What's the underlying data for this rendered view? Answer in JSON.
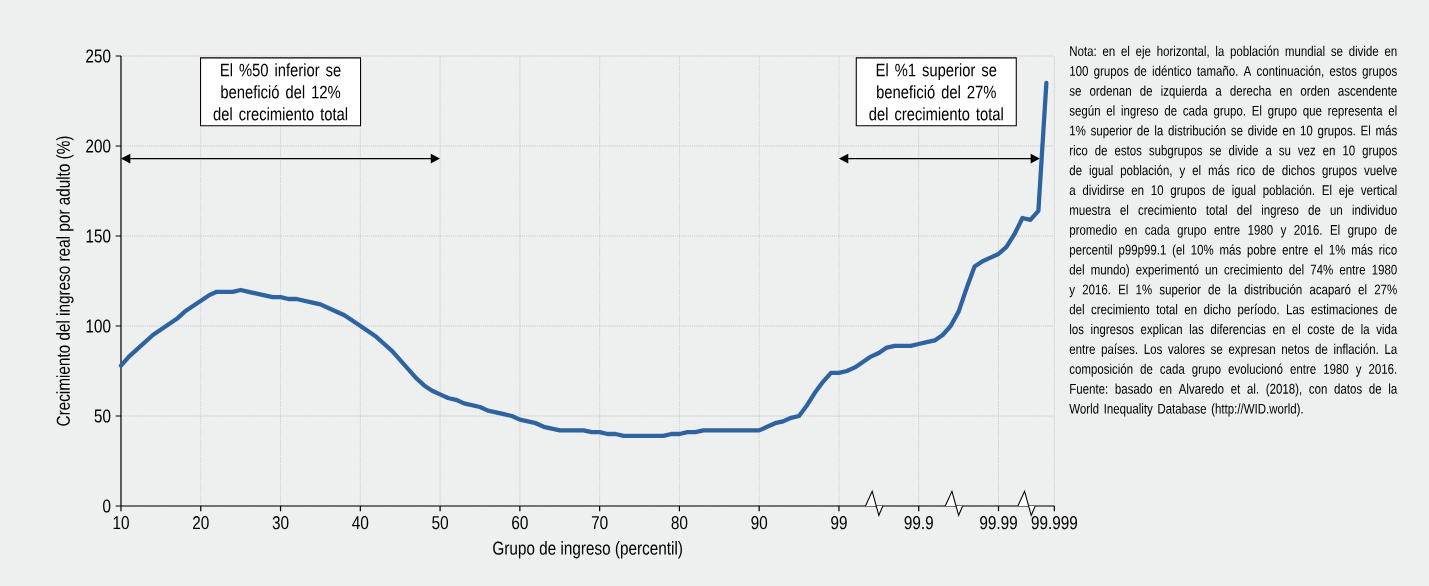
{
  "chart_data": {
    "type": "line",
    "xlabel": "Grupo de ingreso (percentil)",
    "ylabel": "Crecimiento del ingreso real por adulto (%)",
    "categories": [
      "10",
      null,
      null,
      null,
      null,
      null,
      null,
      null,
      null,
      null,
      "20",
      null,
      null,
      null,
      null,
      null,
      null,
      null,
      null,
      null,
      "30",
      null,
      null,
      null,
      null,
      null,
      null,
      null,
      null,
      null,
      "40",
      null,
      null,
      null,
      null,
      null,
      null,
      null,
      null,
      null,
      "50",
      null,
      null,
      null,
      null,
      null,
      null,
      null,
      null,
      null,
      "60",
      null,
      null,
      null,
      null,
      null,
      null,
      null,
      null,
      null,
      "70",
      null,
      null,
      null,
      null,
      null,
      null,
      null,
      null,
      null,
      "80",
      null,
      null,
      null,
      null,
      null,
      null,
      null,
      null,
      null,
      "90",
      null,
      null,
      null,
      null,
      null,
      null,
      null,
      null,
      null,
      "99",
      null,
      null,
      null,
      null,
      null,
      null,
      null,
      null,
      null,
      "99.9",
      null,
      null,
      null,
      null,
      null,
      null,
      null,
      null,
      null,
      "99.99",
      null,
      null,
      null,
      null,
      null,
      null,
      "99.999"
    ],
    "values": [
      78,
      83,
      87,
      91,
      95,
      98,
      101,
      104,
      108,
      111,
      114,
      117,
      119,
      119,
      119,
      120,
      119,
      118,
      117,
      116,
      116,
      115,
      115,
      114,
      113,
      112,
      110,
      108,
      106,
      103,
      100,
      97,
      94,
      90,
      86,
      81,
      76,
      71,
      67,
      64,
      62,
      60,
      59,
      57,
      56,
      55,
      53,
      52,
      51,
      50,
      48,
      47,
      46,
      44,
      43,
      42,
      42,
      42,
      42,
      41,
      41,
      40,
      40,
      39,
      39,
      39,
      39,
      39,
      39,
      40,
      40,
      41,
      41,
      42,
      42,
      42,
      42,
      42,
      42,
      42,
      42,
      44,
      46,
      47,
      49,
      50,
      56,
      63,
      69,
      74,
      74,
      75,
      77,
      80,
      83,
      85,
      88,
      89,
      89,
      89,
      90,
      91,
      92,
      95,
      100,
      108,
      121,
      133,
      136,
      138,
      140,
      144,
      151,
      160,
      159,
      164,
      235,
      null
    ],
    "color": "#2e63a0",
    "ylim": [
      0,
      250
    ],
    "yticks": [
      0,
      50,
      100,
      150,
      200,
      250
    ],
    "grid": true,
    "marker": "none",
    "line_style": "solid",
    "annotations": [
      "El %50 inferior se benefició del 12% del crecimiento total",
      "El %1 superior se benefició del 27% del crecimiento total",
      "Nota: en el eje horizontal, la población mundial se divide en 100 grupos de idéntico tamaño. A continuación, estos grupos se ordenan de izquierda a derecha en orden ascendente según el ingreso de cada grupo. El grupo que representa el 1% superior de la distribución se divide en 10 grupos. El más rico de estos subgrupos se divide a su vez en 10 grupos de igual población, y el más rico de dichos grupos vuelve a dividirse en 10 grupos de igual población. El eje vertical muestra el crecimiento total del ingreso de un individuo promedio en cada grupo entre 1980 y 2016. El grupo de percentil p99p99.1 (el 10% más pobre entre el 1% más rico del mundo) experimentó un crecimiento del 74% entre 1980 y 2016. El 1% superior de la distribución acaparó el 27% del crecimiento total en dicho período. Las estimaciones de los ingresos explican las diferencias en el coste de la vida entre países. Los valores se expresan netos de inflación. La composición de cada grupo evolucionó entre 1980 y 2016. Fuente: basado en Alvaredo et al. (2018), con datos de la World Inequality Database (http://WID.world)."
    ]
  }
}
